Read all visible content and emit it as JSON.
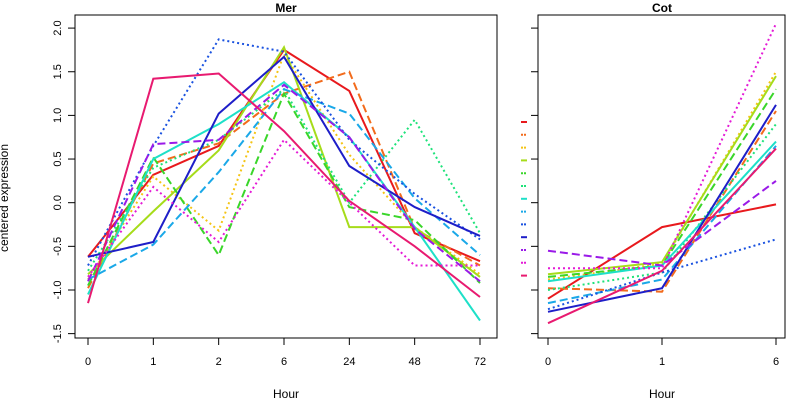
{
  "chart_data": [
    {
      "type": "line",
      "title": "Mer",
      "xlabel": "Hour",
      "ylabel": "centered expression",
      "categories": [
        "0",
        "1",
        "2",
        "6",
        "24",
        "48",
        "72"
      ],
      "ylim": [
        -1.55,
        2.15
      ],
      "yticks": [
        "-1.5",
        "-1.0",
        "-0.5",
        "0.0",
        "0.5",
        "1.0",
        "1.5",
        "2.0"
      ],
      "grid": false,
      "series": [
        {
          "color": "#e8191d",
          "dash": "solid",
          "values": [
            -0.62,
            0.32,
            0.65,
            1.75,
            1.28,
            -0.35,
            -0.67
          ]
        },
        {
          "color": "#f26b1c",
          "dash": "dashed",
          "values": [
            -0.98,
            0.45,
            0.68,
            1.25,
            1.5,
            -0.3,
            -0.72
          ]
        },
        {
          "color": "#f4c414",
          "dash": "dotted",
          "values": [
            -0.88,
            0.3,
            -0.32,
            1.7,
            0.55,
            -0.28,
            -0.82
          ]
        },
        {
          "color": "#a6dc1a",
          "dash": "solid",
          "values": [
            -0.82,
            -0.1,
            0.6,
            1.78,
            -0.28,
            -0.28,
            -0.85
          ]
        },
        {
          "color": "#3ad62a",
          "dash": "dashed",
          "values": [
            -0.95,
            0.52,
            -0.6,
            1.25,
            -0.05,
            -0.2,
            -0.92
          ]
        },
        {
          "color": "#1ee27a",
          "dash": "dotted",
          "values": [
            -0.78,
            0.4,
            0.72,
            1.3,
            0.0,
            0.95,
            -0.35
          ]
        },
        {
          "color": "#1ee0c8",
          "dash": "solid",
          "values": [
            -1.05,
            0.5,
            0.9,
            1.38,
            0.75,
            -0.28,
            -1.35
          ]
        },
        {
          "color": "#1aa8e8",
          "dash": "dashed",
          "values": [
            -0.88,
            -0.48,
            0.35,
            1.3,
            1.02,
            0.05,
            -0.6
          ]
        },
        {
          "color": "#1a52e0",
          "dash": "dotted",
          "values": [
            -0.72,
            0.65,
            1.87,
            1.73,
            0.72,
            0.1,
            -0.42
          ]
        },
        {
          "color": "#1e1ec8",
          "dash": "solid",
          "values": [
            -0.62,
            -0.45,
            1.02,
            1.67,
            0.42,
            -0.05,
            -0.38
          ]
        },
        {
          "color": "#9a1ae8",
          "dash": "dashed",
          "values": [
            -0.9,
            0.67,
            0.72,
            1.35,
            0.75,
            -0.3,
            -0.9
          ]
        },
        {
          "color": "#e41ad6",
          "dash": "dotted",
          "values": [
            -0.85,
            0.18,
            -0.45,
            0.72,
            0.0,
            -0.72,
            -0.72
          ]
        },
        {
          "color": "#e81a70",
          "dash": "solid",
          "values": [
            -1.15,
            1.42,
            1.48,
            0.82,
            0.02,
            -0.5,
            -1.08
          ]
        }
      ]
    },
    {
      "type": "line",
      "title": "Cot",
      "xlabel": "Hour",
      "ylabel": "",
      "categories": [
        "0",
        "1",
        "6"
      ],
      "ylim": [
        -1.55,
        2.15
      ],
      "yticks": [],
      "grid": false,
      "series": [
        {
          "color": "#e8191d",
          "dash": "solid",
          "values": [
            -1.1,
            -0.28,
            -0.02
          ]
        },
        {
          "color": "#f26b1c",
          "dash": "dashed",
          "values": [
            -0.98,
            -1.02,
            1.05
          ]
        },
        {
          "color": "#f4c414",
          "dash": "dotted",
          "values": [
            -0.88,
            -0.7,
            1.5
          ]
        },
        {
          "color": "#a6dc1a",
          "dash": "solid",
          "values": [
            -0.82,
            -0.68,
            1.45
          ]
        },
        {
          "color": "#3ad62a",
          "dash": "dashed",
          "values": [
            -0.85,
            -0.72,
            1.3
          ]
        },
        {
          "color": "#1ee27a",
          "dash": "dotted",
          "values": [
            -1.0,
            -0.8,
            0.9
          ]
        },
        {
          "color": "#1ee0c8",
          "dash": "solid",
          "values": [
            -0.9,
            -0.72,
            0.7
          ]
        },
        {
          "color": "#1aa8e8",
          "dash": "dashed",
          "values": [
            -1.15,
            -0.88,
            0.65
          ]
        },
        {
          "color": "#1a52e0",
          "dash": "dotted",
          "values": [
            -1.22,
            -0.8,
            -0.42
          ]
        },
        {
          "color": "#1e1ec8",
          "dash": "solid",
          "values": [
            -1.25,
            -0.98,
            1.12
          ]
        },
        {
          "color": "#9a1ae8",
          "dash": "dashed",
          "values": [
            -0.55,
            -0.72,
            0.25
          ]
        },
        {
          "color": "#e41ad6",
          "dash": "dotted",
          "values": [
            -0.75,
            -0.75,
            2.05
          ]
        },
        {
          "color": "#e81a70",
          "dash": "solid",
          "values": [
            -1.38,
            -0.78,
            0.62
          ]
        }
      ]
    }
  ]
}
